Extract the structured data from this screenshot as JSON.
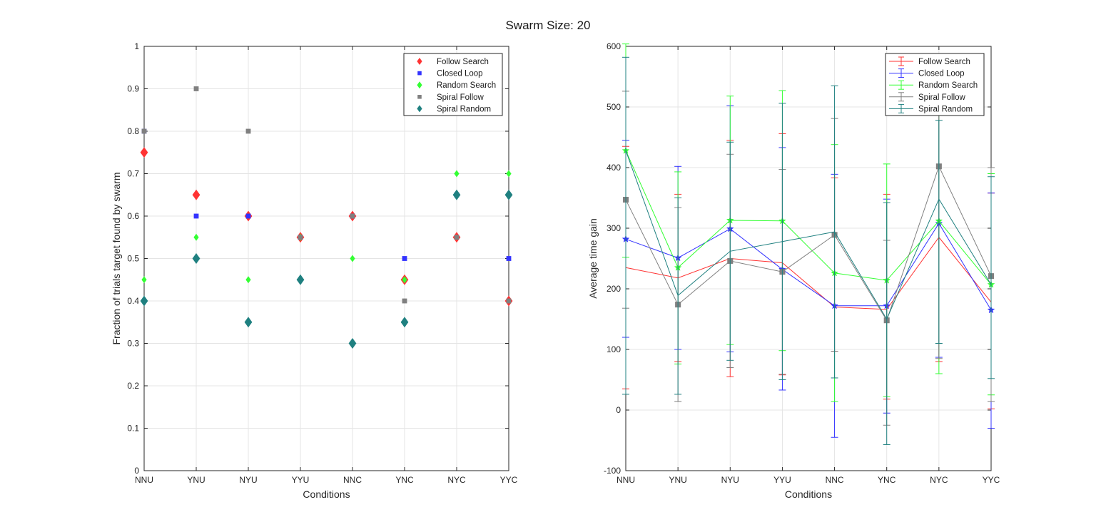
{
  "title": "Swarm Size: 20",
  "colors": {
    "follow_search": "#ff3333",
    "closed_loop": "#3333ff",
    "random_search": "#33ff33",
    "spiral_follow": "#808080",
    "spiral_random": "#1f8080"
  },
  "chart_data": [
    {
      "type": "scatter",
      "categories": [
        "NNU",
        "YNU",
        "NYU",
        "YYU",
        "NNC",
        "YNC",
        "NYC",
        "YYC"
      ],
      "xlabel": "Conditions",
      "ylabel": "Fraction of trials target found by swarm",
      "ylim": [
        0,
        1
      ],
      "yticks": [
        0,
        0.1,
        0.2,
        0.3,
        0.4,
        0.5,
        0.6,
        0.7,
        0.8,
        0.9,
        1
      ],
      "grid": true,
      "legend_position": "top-right",
      "series": [
        {
          "name": "Follow Search",
          "color_key": "follow_search",
          "marker": "diamond",
          "values": [
            0.75,
            0.65,
            0.6,
            0.55,
            0.6,
            0.45,
            0.55,
            0.4
          ]
        },
        {
          "name": "Closed Loop",
          "color_key": "closed_loop",
          "marker": "square",
          "values": [
            0.8,
            0.6,
            0.6,
            0.55,
            0.6,
            0.5,
            0.65,
            0.5
          ]
        },
        {
          "name": "Random Search",
          "color_key": "random_search",
          "marker": "diamond",
          "values": [
            0.45,
            0.55,
            0.45,
            0.55,
            0.5,
            0.45,
            0.7,
            0.7
          ]
        },
        {
          "name": "Spiral Follow",
          "color_key": "spiral_follow",
          "marker": "square",
          "values": [
            0.8,
            0.9,
            0.8,
            0.55,
            0.6,
            0.4,
            0.55,
            0.4
          ]
        },
        {
          "name": "Spiral Random",
          "color_key": "spiral_random",
          "marker": "diamond",
          "values": [
            0.4,
            0.5,
            0.35,
            0.45,
            0.3,
            0.35,
            0.65,
            0.65
          ]
        }
      ]
    },
    {
      "type": "line",
      "categories": [
        "NNU",
        "YNU",
        "NYU",
        "YYU",
        "NNC",
        "YNC",
        "NYC",
        "YYC"
      ],
      "xlabel": "Conditions",
      "ylabel": "Average time gain",
      "ylim": [
        -100,
        600
      ],
      "yticks": [
        -100,
        0,
        100,
        200,
        300,
        400,
        500,
        600
      ],
      "grid": true,
      "error_bars": true,
      "legend_position": "top-right",
      "series": [
        {
          "name": "Follow Search",
          "color_key": "follow_search",
          "marker": "none",
          "values": [
            235,
            218,
            250,
            243,
            170,
            166,
            285,
            178
          ],
          "lower": [
            35,
            80,
            55,
            58,
            97,
            18,
            80,
            2
          ],
          "upper": [
            435,
            356,
            445,
            456,
            383,
            356,
            490,
            358
          ]
        },
        {
          "name": "Closed Loop",
          "color_key": "closed_loop",
          "marker": "star",
          "values": [
            282,
            251,
            299,
            232,
            172,
            172,
            308,
            165
          ],
          "lower": [
            120,
            100,
            96,
            33,
            -45,
            -5,
            87,
            -30
          ],
          "upper": [
            445,
            402,
            502,
            433,
            389,
            348,
            528,
            358
          ]
        },
        {
          "name": "Random Search",
          "color_key": "random_search",
          "marker": "star",
          "values": [
            428,
            235,
            313,
            312,
            226,
            214,
            312,
            207
          ],
          "lower": [
            252,
            76,
            108,
            98,
            14,
            22,
            60,
            25
          ],
          "upper": [
            604,
            393,
            518,
            527,
            438,
            406,
            563,
            390
          ]
        },
        {
          "name": "Spiral Follow",
          "color_key": "spiral_follow",
          "marker": "square",
          "values": [
            347,
            174,
            246,
            228,
            289,
            148,
            402,
            221
          ],
          "lower": [
            168,
            14,
            70,
            59,
            97,
            -25,
            85,
            14
          ],
          "upper": [
            526,
            334,
            422,
            397,
            481,
            280,
            500,
            400
          ]
        },
        {
          "name": "Spiral Random",
          "color_key": "spiral_random",
          "marker": "none",
          "values": [
            428,
            189,
            262,
            278,
            294,
            150,
            348,
            207
          ],
          "lower": [
            26,
            26,
            82,
            50,
            53,
            -57,
            110,
            52
          ],
          "upper": [
            582,
            350,
            442,
            506,
            535,
            342,
            478,
            385
          ]
        }
      ]
    }
  ]
}
